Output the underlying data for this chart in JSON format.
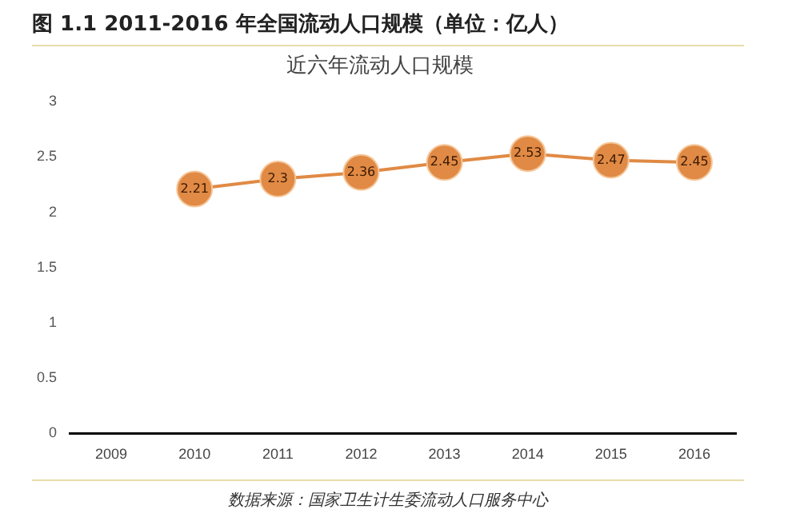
{
  "chart_data": {
    "type": "line",
    "title": "近六年流动人口规模",
    "subtitle": "图 1.1 2011-2016 年全国流动人口规模（单位：亿人）",
    "annotations": [
      "数据来源：国家卫生计生委流动人口服务中心"
    ],
    "categories": [
      "2009",
      "2010",
      "2011",
      "2012",
      "2013",
      "2014",
      "2015",
      "2016"
    ],
    "series": [
      {
        "color": "#e08a45",
        "values": [
          null,
          2.21,
          2.3,
          2.36,
          2.45,
          2.53,
          2.47,
          2.45
        ]
      }
    ],
    "ylim": [
      0,
      3
    ],
    "yticks": [
      0,
      0.5,
      1,
      1.5,
      2,
      2.5,
      3
    ],
    "grid": false,
    "legend": false,
    "marker": "circle",
    "line_style": "solid",
    "data_labels": true
  }
}
